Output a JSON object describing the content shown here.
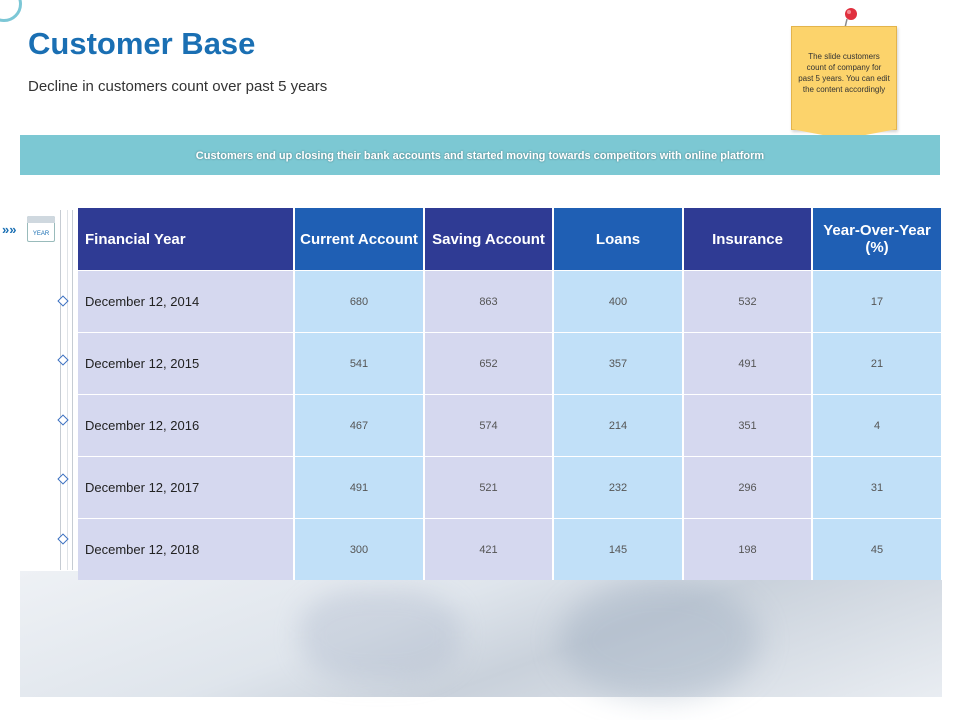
{
  "header": {
    "title": "Customer Base",
    "subtitle": "Decline in customers count  over past 5 years"
  },
  "note": {
    "text": "The slide customers count of company for past 5 years. You can edit the content accordingly"
  },
  "banner": {
    "text": "Customers end up closing their bank accounts and started moving towards competitors with online platform"
  },
  "timeline": {
    "icon": "calendar-icon",
    "icon_label": "YEAR",
    "arrows": "»»"
  },
  "table": {
    "headers": [
      "Financial Year",
      "Current Account",
      "Saving Account",
      "Loans",
      "Insurance",
      "Year-Over-Year (%)"
    ],
    "rows": [
      [
        "December 12, 2014",
        "680",
        "863",
        "400",
        "532",
        "17"
      ],
      [
        "December 12, 2015",
        "541",
        "652",
        "357",
        "491",
        "21"
      ],
      [
        "December 12, 2016",
        "467",
        "574",
        "214",
        "351",
        "4"
      ],
      [
        "December 12, 2017",
        "491",
        "521",
        "232",
        "296",
        "31"
      ],
      [
        "December 12, 2018",
        "300",
        "421",
        "145",
        "198",
        "45"
      ]
    ]
  },
  "colors": {
    "title": "#1a6fb3",
    "banner": "#7cc8d3",
    "header_blue": "#1f5fb4",
    "header_dark": "#2f3b94",
    "cell_lavender": "#d5d8ef",
    "cell_sky": "#c1e0f8",
    "note": "#fcd36b"
  }
}
